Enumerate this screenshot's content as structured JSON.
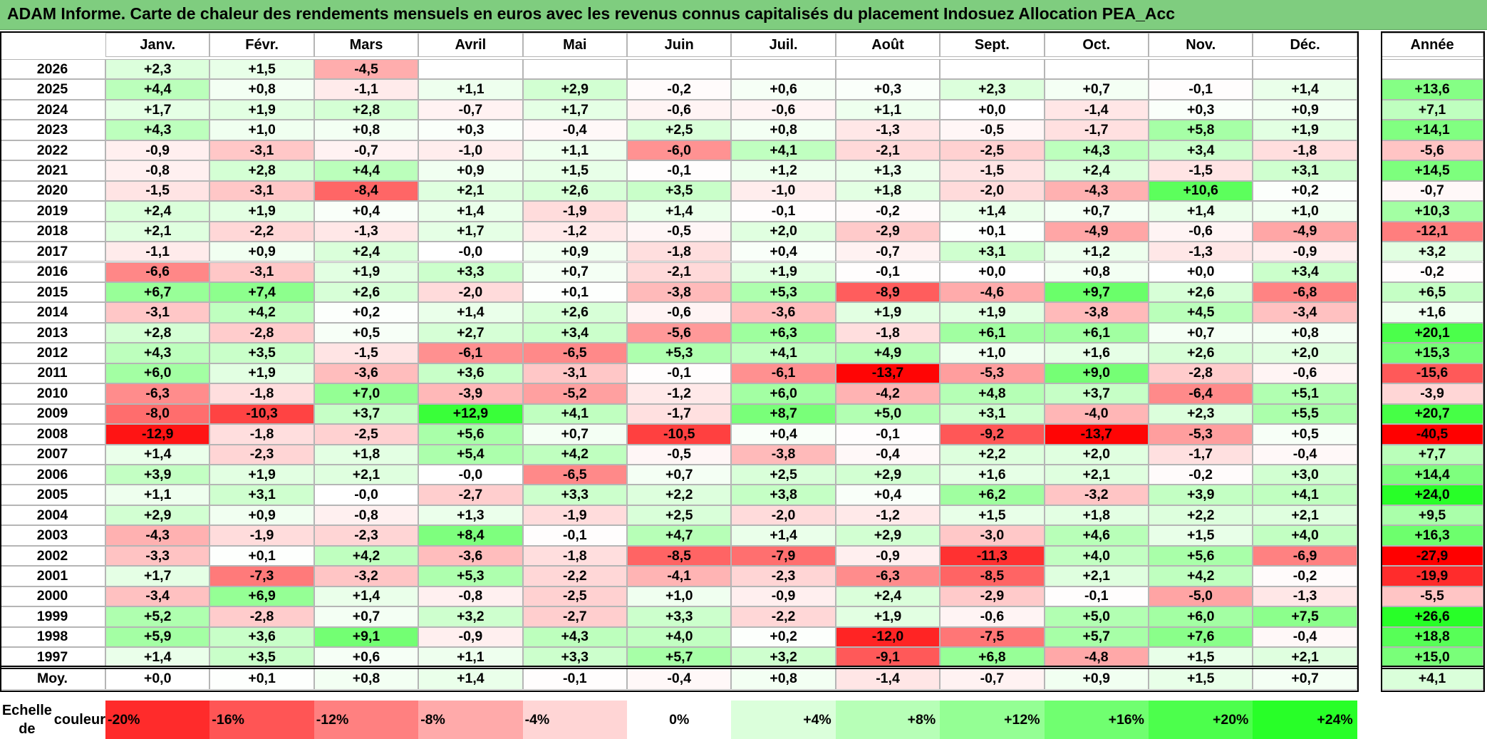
{
  "title": "ADAM Informe. Carte de chaleur des rendements mensuels en euros avec les revenus connus capitalisés du placement Indosuez Allocation PEA_Acc",
  "chart_data": {
    "type": "heatmap",
    "title": "ADAM Informe. Carte de chaleur des rendements mensuels en euros avec les revenus connus capitalisés du placement Indosuez Allocation PEA_Acc",
    "columns": [
      "Janv.",
      "Févr.",
      "Mars",
      "Avril",
      "Mai",
      "Juin",
      "Juil.",
      "Août",
      "Sept.",
      "Oct.",
      "Nov.",
      "Déc."
    ],
    "year_header": "Année",
    "rows": [
      {
        "year": "2026",
        "values": [
          "+2,3",
          "+1,5",
          "-4,5",
          "",
          "",
          "",
          "",
          "",
          "",
          "",
          "",
          ""
        ],
        "annual": ""
      },
      {
        "year": "2025",
        "values": [
          "+4,4",
          "+0,8",
          "-1,1",
          "+1,1",
          "+2,9",
          "-0,2",
          "+0,6",
          "+0,3",
          "+2,3",
          "+0,7",
          "-0,1",
          "+1,4"
        ],
        "annual": "+13,6"
      },
      {
        "year": "2024",
        "values": [
          "+1,7",
          "+1,9",
          "+2,8",
          "-0,7",
          "+1,7",
          "-0,6",
          "-0,6",
          "+1,1",
          "+0,0",
          "-1,4",
          "+0,3",
          "+0,9"
        ],
        "annual": "+7,1"
      },
      {
        "year": "2023",
        "values": [
          "+4,3",
          "+1,0",
          "+0,8",
          "+0,3",
          "-0,4",
          "+2,5",
          "+0,8",
          "-1,3",
          "-0,5",
          "-1,7",
          "+5,8",
          "+1,9"
        ],
        "annual": "+14,1"
      },
      {
        "year": "2022",
        "values": [
          "-0,9",
          "-3,1",
          "-0,7",
          "-1,0",
          "+1,1",
          "-6,0",
          "+4,1",
          "-2,1",
          "-2,5",
          "+4,3",
          "+3,4",
          "-1,8"
        ],
        "annual": "-5,6"
      },
      {
        "year": "2021",
        "values": [
          "-0,8",
          "+2,8",
          "+4,4",
          "+0,9",
          "+1,5",
          "-0,1",
          "+1,2",
          "+1,3",
          "-1,5",
          "+2,4",
          "-1,5",
          "+3,1"
        ],
        "annual": "+14,5"
      },
      {
        "year": "2020",
        "values": [
          "-1,5",
          "-3,1",
          "-8,4",
          "+2,1",
          "+2,6",
          "+3,5",
          "-1,0",
          "+1,8",
          "-2,0",
          "-4,3",
          "+10,6",
          "+0,2"
        ],
        "annual": "-0,7"
      },
      {
        "year": "2019",
        "values": [
          "+2,4",
          "+1,9",
          "+0,4",
          "+1,4",
          "-1,9",
          "+1,4",
          "-0,1",
          "-0,2",
          "+1,4",
          "+0,7",
          "+1,4",
          "+1,0"
        ],
        "annual": "+10,3"
      },
      {
        "year": "2018",
        "values": [
          "+2,1",
          "-2,2",
          "-1,3",
          "+1,7",
          "-1,2",
          "-0,5",
          "+2,0",
          "-2,9",
          "+0,1",
          "-4,9",
          "-0,6",
          "-4,9"
        ],
        "annual": "-12,1"
      },
      {
        "year": "2017",
        "values": [
          "-1,1",
          "+0,9",
          "+2,4",
          "-0,0",
          "+0,9",
          "-1,8",
          "+0,4",
          "-0,7",
          "+3,1",
          "+1,2",
          "-1,3",
          "-0,9"
        ],
        "annual": "+3,2"
      },
      {
        "year": "2016",
        "values": [
          "-6,6",
          "-3,1",
          "+1,9",
          "+3,3",
          "+0,7",
          "-2,1",
          "+1,9",
          "-0,1",
          "+0,0",
          "+0,8",
          "+0,0",
          "+3,4"
        ],
        "annual": "-0,2"
      },
      {
        "year": "2015",
        "values": [
          "+6,7",
          "+7,4",
          "+2,6",
          "-2,0",
          "+0,1",
          "-3,8",
          "+5,3",
          "-8,9",
          "-4,6",
          "+9,7",
          "+2,6",
          "-6,8"
        ],
        "annual": "+6,5"
      },
      {
        "year": "2014",
        "values": [
          "-3,1",
          "+4,2",
          "+0,2",
          "+1,4",
          "+2,6",
          "-0,6",
          "-3,6",
          "+1,9",
          "+1,9",
          "-3,8",
          "+4,5",
          "-3,4"
        ],
        "annual": "+1,6"
      },
      {
        "year": "2013",
        "values": [
          "+2,8",
          "-2,8",
          "+0,5",
          "+2,7",
          "+3,4",
          "-5,6",
          "+6,3",
          "-1,8",
          "+6,1",
          "+6,1",
          "+0,7",
          "+0,8"
        ],
        "annual": "+20,1"
      },
      {
        "year": "2012",
        "values": [
          "+4,3",
          "+3,5",
          "-1,5",
          "-6,1",
          "-6,5",
          "+5,3",
          "+4,1",
          "+4,9",
          "+1,0",
          "+1,6",
          "+2,6",
          "+2,0"
        ],
        "annual": "+15,3"
      },
      {
        "year": "2011",
        "values": [
          "+6,0",
          "+1,9",
          "-3,6",
          "+3,6",
          "-3,1",
          "-0,1",
          "-6,1",
          "-13,7",
          "-5,3",
          "+9,0",
          "-2,8",
          "-0,6"
        ],
        "annual": "-15,6"
      },
      {
        "year": "2010",
        "values": [
          "-6,3",
          "-1,8",
          "+7,0",
          "-3,9",
          "-5,2",
          "-1,2",
          "+6,0",
          "-4,2",
          "+4,8",
          "+3,7",
          "-6,4",
          "+5,1"
        ],
        "annual": "-3,9"
      },
      {
        "year": "2009",
        "values": [
          "-8,0",
          "-10,3",
          "+3,7",
          "+12,9",
          "+4,1",
          "-1,7",
          "+8,7",
          "+5,0",
          "+3,1",
          "-4,0",
          "+2,3",
          "+5,5"
        ],
        "annual": "+20,7"
      },
      {
        "year": "2008",
        "values": [
          "-12,9",
          "-1,8",
          "-2,5",
          "+5,6",
          "+0,7",
          "-10,5",
          "+0,4",
          "-0,1",
          "-9,2",
          "-13,7",
          "-5,3",
          "+0,5"
        ],
        "annual": "-40,5"
      },
      {
        "year": "2007",
        "values": [
          "+1,4",
          "-2,3",
          "+1,8",
          "+5,4",
          "+4,2",
          "-0,5",
          "-3,8",
          "-0,4",
          "+2,2",
          "+2,0",
          "-1,7",
          "-0,4"
        ],
        "annual": "+7,7"
      },
      {
        "year": "2006",
        "values": [
          "+3,9",
          "+1,9",
          "+2,1",
          "-0,0",
          "-6,5",
          "+0,7",
          "+2,5",
          "+2,9",
          "+1,6",
          "+2,1",
          "-0,2",
          "+3,0"
        ],
        "annual": "+14,4"
      },
      {
        "year": "2005",
        "values": [
          "+1,1",
          "+3,1",
          "-0,0",
          "-2,7",
          "+3,3",
          "+2,2",
          "+3,8",
          "+0,4",
          "+6,2",
          "-3,2",
          "+3,9",
          "+4,1"
        ],
        "annual": "+24,0"
      },
      {
        "year": "2004",
        "values": [
          "+2,9",
          "+0,9",
          "-0,8",
          "+1,3",
          "-1,9",
          "+2,5",
          "-2,0",
          "-1,2",
          "+1,5",
          "+1,8",
          "+2,2",
          "+2,1"
        ],
        "annual": "+9,5"
      },
      {
        "year": "2003",
        "values": [
          "-4,3",
          "-1,9",
          "-2,3",
          "+8,4",
          "-0,1",
          "+4,7",
          "+1,4",
          "+2,9",
          "-3,0",
          "+4,6",
          "+1,5",
          "+4,0"
        ],
        "annual": "+16,3"
      },
      {
        "year": "2002",
        "values": [
          "-3,3",
          "+0,1",
          "+4,2",
          "-3,6",
          "-1,8",
          "-8,5",
          "-7,9",
          "-0,9",
          "-11,3",
          "+4,0",
          "+5,6",
          "-6,9"
        ],
        "annual": "-27,9"
      },
      {
        "year": "2001",
        "values": [
          "+1,7",
          "-7,3",
          "-3,2",
          "+5,3",
          "-2,2",
          "-4,1",
          "-2,3",
          "-6,3",
          "-8,5",
          "+2,1",
          "+4,2",
          "-0,2"
        ],
        "annual": "-19,9"
      },
      {
        "year": "2000",
        "values": [
          "-3,4",
          "+6,9",
          "+1,4",
          "-0,8",
          "-2,5",
          "+1,0",
          "-0,9",
          "+2,4",
          "-2,9",
          "-0,1",
          "-5,0",
          "-1,3"
        ],
        "annual": "-5,5"
      },
      {
        "year": "1999",
        "values": [
          "+5,2",
          "-2,8",
          "+0,7",
          "+3,2",
          "-2,7",
          "+3,3",
          "-2,2",
          "+1,9",
          "-0,6",
          "+5,0",
          "+6,0",
          "+7,5"
        ],
        "annual": "+26,6"
      },
      {
        "year": "1998",
        "values": [
          "+5,9",
          "+3,6",
          "+9,1",
          "-0,9",
          "+4,3",
          "+4,0",
          "+0,2",
          "-12,0",
          "-7,5",
          "+5,7",
          "+7,6",
          "-0,4"
        ],
        "annual": "+18,8"
      },
      {
        "year": "1997",
        "values": [
          "+1,4",
          "+3,5",
          "+0,6",
          "+1,1",
          "+3,3",
          "+5,7",
          "+3,2",
          "-9,1",
          "+6,8",
          "-4,8",
          "+1,5",
          "+2,1"
        ],
        "annual": "+15,0"
      }
    ],
    "average": {
      "label": "Moy.",
      "values": [
        "+0,0",
        "+0,1",
        "+0,8",
        "+1,4",
        "-0,1",
        "-0,4",
        "+0,8",
        "-1,4",
        "-0,7",
        "+0,9",
        "+1,5",
        "+0,7"
      ],
      "annual": "+4,1"
    },
    "scale": {
      "label_line1": "Echelle de",
      "label_line2": "couleur",
      "items": [
        {
          "text": "-20%",
          "value": -20
        },
        {
          "text": "-16%",
          "value": -16
        },
        {
          "text": "-12%",
          "value": -12
        },
        {
          "text": "-8%",
          "value": -8
        },
        {
          "text": "-4%",
          "value": -4
        },
        {
          "text": "0%",
          "value": 0
        },
        {
          "text": "+4%",
          "value": 4
        },
        {
          "text": "+8%",
          "value": 8
        },
        {
          "text": "+12%",
          "value": 12
        },
        {
          "text": "+16%",
          "value": 16
        },
        {
          "text": "+20%",
          "value": 20
        },
        {
          "text": "+24%",
          "value": 24
        }
      ]
    }
  }
}
